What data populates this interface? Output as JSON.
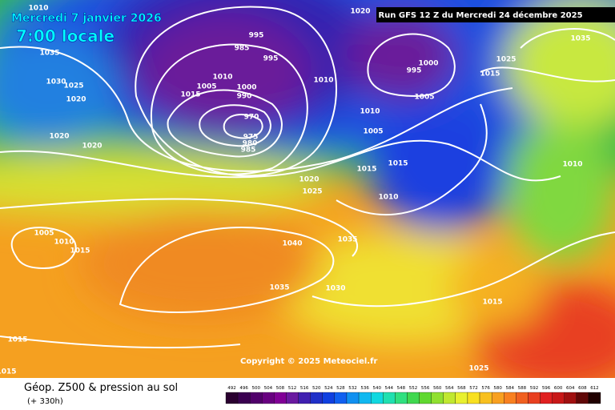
{
  "header": {
    "date": "Mercredi 7 janvier 2026",
    "time": "7:00 locale",
    "run": "Run GFS 12 Z du Mercredi 24 décembre 2025"
  },
  "footer": {
    "title": "Géop. Z500 & pression au sol",
    "lead": "(+ 330h)",
    "copyright": "Copyright © 2025 Meteociel.fr"
  },
  "legend": {
    "labels": [
      492,
      496,
      500,
      504,
      508,
      512,
      516,
      520,
      524,
      528,
      532,
      536,
      540,
      544,
      548,
      552,
      556,
      560,
      564,
      568,
      572,
      576,
      580,
      584,
      588,
      592,
      596,
      600,
      604,
      608,
      612
    ]
  },
  "isobar_labels": [
    "1010",
    "1020",
    "1035",
    "1030",
    "1025",
    "1020",
    "995",
    "985",
    "995",
    "1010",
    "1005",
    "1015",
    "1000",
    "990",
    "970",
    "975",
    "980",
    "985",
    "1010",
    "1000",
    "995",
    "1005",
    "1010",
    "1005",
    "1015",
    "1015",
    "1010",
    "1020",
    "1025",
    "1020",
    "1020",
    "1005",
    "1010",
    "1015",
    "1040",
    "1035",
    "1035",
    "1030",
    "1015",
    "1015",
    "1015",
    "1025",
    "1035",
    "1025",
    "1015",
    "1010"
  ]
}
